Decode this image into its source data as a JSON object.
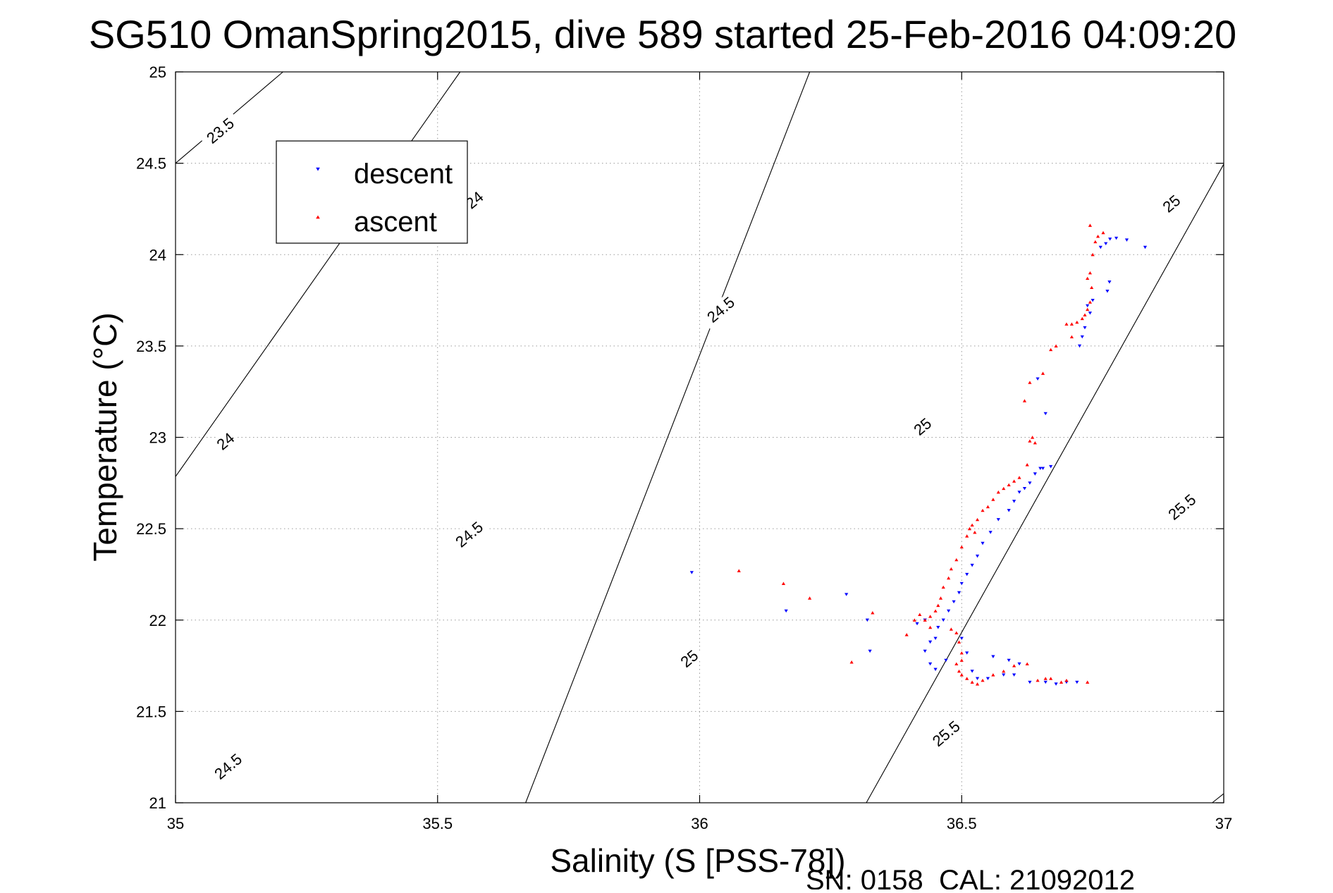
{
  "chart_data": {
    "type": "scatter",
    "title": "SG510 OmanSpring2015, dive 589 started 25-Feb-2016 04:09:20",
    "xlabel": "Salinity (S [PSS-78])",
    "ylabel": "Temperature (°C)",
    "xlim": [
      35,
      37
    ],
    "ylim": [
      21,
      25
    ],
    "x_ticks": [
      35,
      35.5,
      36,
      36.5,
      37
    ],
    "x_tick_labels": [
      "35",
      "35.5",
      "36",
      "36.5",
      "37"
    ],
    "y_ticks": [
      21,
      21.5,
      22,
      22.5,
      23,
      23.5,
      24,
      24.5,
      25
    ],
    "y_tick_labels": [
      "21",
      "21.5",
      "22",
      "22.5",
      "23",
      "23.5",
      "24",
      "24.5",
      "25"
    ],
    "grid": true,
    "legend_position": "top-left",
    "footer": "SN: 0158  CAL: 21092012",
    "density_contours": {
      "color": "#000000",
      "lines": [
        {
          "s": [
            35,
            35.205
          ],
          "t": [
            24.5,
            25
          ]
        },
        {
          "s": [
            35,
            35.543
          ],
          "t": [
            22.785,
            25
          ]
        },
        {
          "s": [
            35.668,
            36.21
          ],
          "t": [
            21,
            25
          ]
        },
        {
          "s": [
            36.318,
            37
          ],
          "t": [
            21,
            24.495
          ]
        },
        {
          "s": [
            36.978,
            37
          ],
          "t": [
            21,
            21.05
          ]
        }
      ],
      "labels": [
        {
          "text": "23.5",
          "s": 35.085,
          "t": 24.68,
          "angle": -40
        },
        {
          "text": "24",
          "s": 35.57,
          "t": 24.3,
          "angle": -40
        },
        {
          "text": "24",
          "s": 35.095,
          "t": 22.98,
          "angle": -40
        },
        {
          "text": "24.5",
          "s": 36.04,
          "t": 23.7,
          "angle": -40
        },
        {
          "text": "24.5",
          "s": 35.56,
          "t": 22.47,
          "angle": -40
        },
        {
          "text": "24.5",
          "s": 35.1,
          "t": 21.2,
          "angle": -40
        },
        {
          "text": "25",
          "s": 36.9,
          "t": 24.28,
          "angle": -40
        },
        {
          "text": "25",
          "s": 36.425,
          "t": 23.06,
          "angle": -40
        },
        {
          "text": "25",
          "s": 35.98,
          "t": 21.79,
          "angle": -40
        },
        {
          "text": "25.5",
          "s": 36.92,
          "t": 22.62,
          "angle": -40
        },
        {
          "text": "25.5",
          "s": 36.47,
          "t": 21.38,
          "angle": -40
        }
      ]
    },
    "series": [
      {
        "name": "descent",
        "color": "#0000ff",
        "marker": "triangle-down",
        "points": [
          [
            36.795,
            24.09
          ],
          [
            36.815,
            24.08
          ],
          [
            36.783,
            24.085
          ],
          [
            36.85,
            24.04
          ],
          [
            36.775,
            24.06
          ],
          [
            36.765,
            24.04
          ],
          [
            36.782,
            23.85
          ],
          [
            36.778,
            23.8
          ],
          [
            36.75,
            23.75
          ],
          [
            36.74,
            23.72
          ],
          [
            36.745,
            23.68
          ],
          [
            36.735,
            23.6
          ],
          [
            36.73,
            23.55
          ],
          [
            36.725,
            23.5
          ],
          [
            36.645,
            23.32
          ],
          [
            36.66,
            23.13
          ],
          [
            36.67,
            22.84
          ],
          [
            36.655,
            22.83
          ],
          [
            36.65,
            22.83
          ],
          [
            36.64,
            22.8
          ],
          [
            36.63,
            22.75
          ],
          [
            36.62,
            22.72
          ],
          [
            36.61,
            22.7
          ],
          [
            36.6,
            22.65
          ],
          [
            36.59,
            22.6
          ],
          [
            36.57,
            22.55
          ],
          [
            36.555,
            22.48
          ],
          [
            36.54,
            22.42
          ],
          [
            36.53,
            22.35
          ],
          [
            36.52,
            22.3
          ],
          [
            36.51,
            22.25
          ],
          [
            36.5,
            22.2
          ],
          [
            36.495,
            22.15
          ],
          [
            36.485,
            22.1
          ],
          [
            36.475,
            22.05
          ],
          [
            36.465,
            22.0
          ],
          [
            36.455,
            21.96
          ],
          [
            36.45,
            21.9
          ],
          [
            36.44,
            21.88
          ],
          [
            36.43,
            21.83
          ],
          [
            36.47,
            21.78
          ],
          [
            36.5,
            21.9
          ],
          [
            36.51,
            21.82
          ],
          [
            36.52,
            21.72
          ],
          [
            36.53,
            21.68
          ],
          [
            36.55,
            21.68
          ],
          [
            36.58,
            21.7
          ],
          [
            36.6,
            21.7
          ],
          [
            36.63,
            21.66
          ],
          [
            36.56,
            21.8
          ],
          [
            36.59,
            21.78
          ],
          [
            36.61,
            21.76
          ],
          [
            36.66,
            21.66
          ],
          [
            36.7,
            21.66
          ],
          [
            36.68,
            21.65
          ],
          [
            36.72,
            21.66
          ],
          [
            35.985,
            22.26
          ],
          [
            36.165,
            22.05
          ],
          [
            36.28,
            22.14
          ],
          [
            36.32,
            22.0
          ],
          [
            36.325,
            21.83
          ],
          [
            36.44,
            21.76
          ],
          [
            36.45,
            21.73
          ],
          [
            36.415,
            21.98
          ],
          [
            36.43,
            22.0
          ]
        ]
      },
      {
        "name": "ascent",
        "color": "#ff0000",
        "marker": "triangle-up",
        "points": [
          [
            36.745,
            24.16
          ],
          [
            36.76,
            24.1
          ],
          [
            36.77,
            24.12
          ],
          [
            36.755,
            24.07
          ],
          [
            36.75,
            24.0
          ],
          [
            36.745,
            23.9
          ],
          [
            36.74,
            23.87
          ],
          [
            36.748,
            23.82
          ],
          [
            36.745,
            23.74
          ],
          [
            36.74,
            23.7
          ],
          [
            36.735,
            23.67
          ],
          [
            36.73,
            23.65
          ],
          [
            36.72,
            23.63
          ],
          [
            36.71,
            23.62
          ],
          [
            36.7,
            23.62
          ],
          [
            36.71,
            23.55
          ],
          [
            36.68,
            23.5
          ],
          [
            36.67,
            23.48
          ],
          [
            36.655,
            23.35
          ],
          [
            36.63,
            23.3
          ],
          [
            36.62,
            23.2
          ],
          [
            36.635,
            23.0
          ],
          [
            36.63,
            22.98
          ],
          [
            36.64,
            22.97
          ],
          [
            36.625,
            22.85
          ],
          [
            36.61,
            22.78
          ],
          [
            36.6,
            22.76
          ],
          [
            36.59,
            22.74
          ],
          [
            36.58,
            22.72
          ],
          [
            36.57,
            22.7
          ],
          [
            36.56,
            22.66
          ],
          [
            36.55,
            22.62
          ],
          [
            36.54,
            22.6
          ],
          [
            36.53,
            22.55
          ],
          [
            36.52,
            22.52
          ],
          [
            36.515,
            22.5
          ],
          [
            36.525,
            22.48
          ],
          [
            36.51,
            22.46
          ],
          [
            36.5,
            22.4
          ],
          [
            36.49,
            22.33
          ],
          [
            36.48,
            22.28
          ],
          [
            36.475,
            22.23
          ],
          [
            36.465,
            22.18
          ],
          [
            36.46,
            22.12
          ],
          [
            36.455,
            22.08
          ],
          [
            36.45,
            22.05
          ],
          [
            36.44,
            22.02
          ],
          [
            36.43,
            22.0
          ],
          [
            36.44,
            21.96
          ],
          [
            36.48,
            21.95
          ],
          [
            36.49,
            21.93
          ],
          [
            36.495,
            21.88
          ],
          [
            36.5,
            21.82
          ],
          [
            36.5,
            21.78
          ],
          [
            36.49,
            21.76
          ],
          [
            36.495,
            21.72
          ],
          [
            36.5,
            21.7
          ],
          [
            36.51,
            21.68
          ],
          [
            36.52,
            21.66
          ],
          [
            36.53,
            21.65
          ],
          [
            36.54,
            21.67
          ],
          [
            36.56,
            21.7
          ],
          [
            36.58,
            21.72
          ],
          [
            36.6,
            21.75
          ],
          [
            36.625,
            21.76
          ],
          [
            36.645,
            21.67
          ],
          [
            36.66,
            21.68
          ],
          [
            36.67,
            21.68
          ],
          [
            36.69,
            21.66
          ],
          [
            36.7,
            21.67
          ],
          [
            36.74,
            21.66
          ],
          [
            36.075,
            22.27
          ],
          [
            36.16,
            22.2
          ],
          [
            36.21,
            22.12
          ],
          [
            36.33,
            22.04
          ],
          [
            36.29,
            21.77
          ],
          [
            36.395,
            21.92
          ],
          [
            36.41,
            22.0
          ],
          [
            36.42,
            22.03
          ]
        ]
      }
    ]
  }
}
